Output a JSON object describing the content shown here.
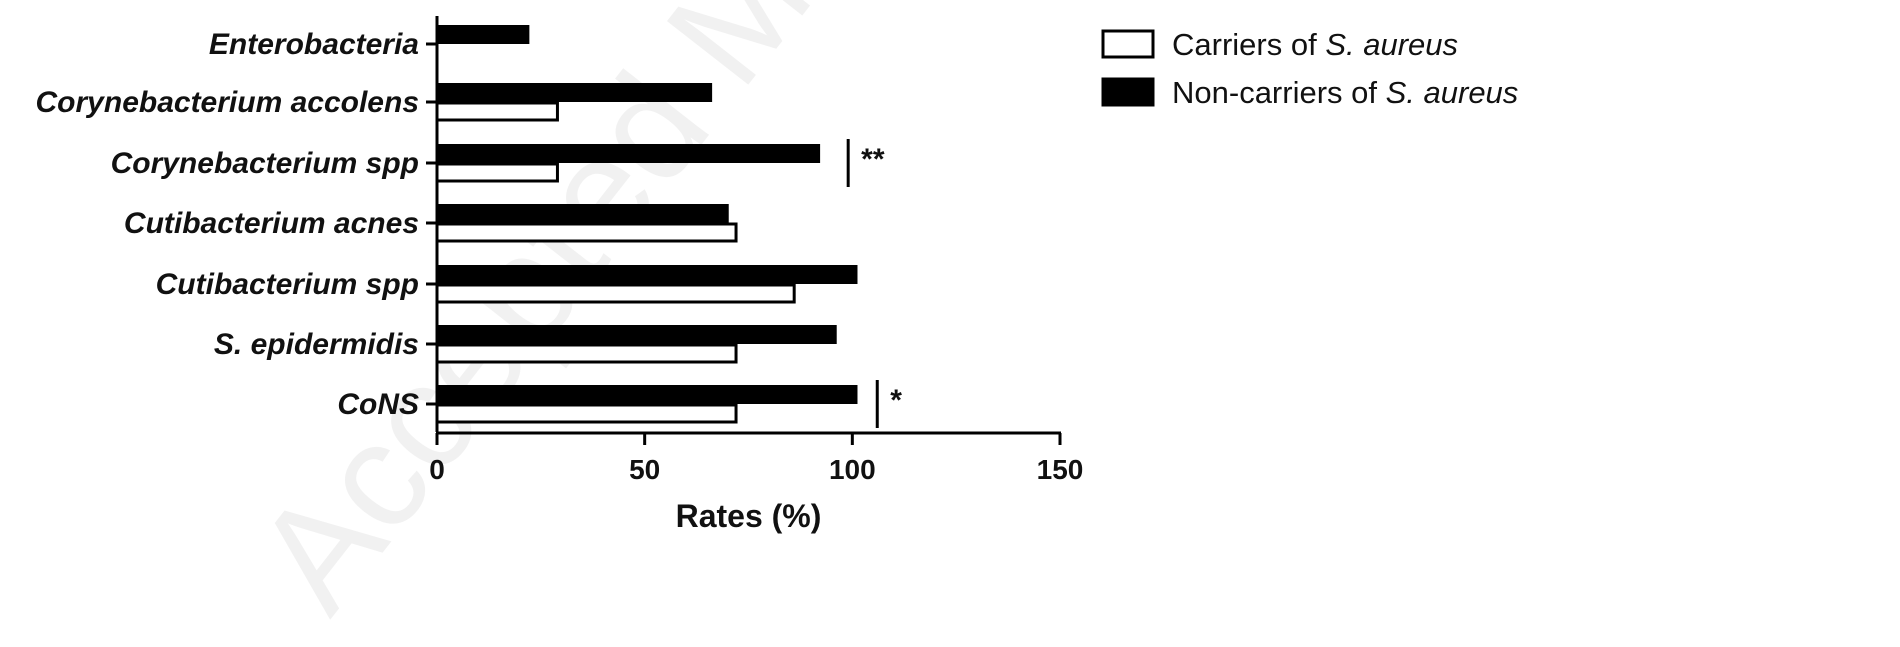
{
  "chart_data": {
    "type": "bar",
    "orientation": "horizontal",
    "categories": [
      "Enterobacteria",
      "Corynebacterium accolens",
      "Corynebacterium spp",
      "Cutibacterium acnes",
      "Cutibacterium spp",
      "S. epidermidis",
      "CoNS"
    ],
    "series": [
      {
        "name_prefix": "Carriers of ",
        "name_italic": "S. aureus",
        "fill": "#ffffff",
        "stroke": "#000000",
        "values": [
          0,
          29,
          29,
          72,
          86,
          72,
          72
        ]
      },
      {
        "name_prefix": "Non-carriers of ",
        "name_italic": "S. aureus",
        "fill": "#000000",
        "stroke": "#000000",
        "values": [
          22,
          66,
          92,
          70,
          101,
          96,
          101
        ]
      }
    ],
    "xlabel": "Rates (%)",
    "ylabel": "",
    "xlim": [
      0,
      150
    ],
    "xticks": [
      "0",
      "50",
      "100",
      "150"
    ],
    "legend_position": "top-right",
    "significance": [
      {
        "category": "Corynebacterium spp",
        "label": "**",
        "at": 99
      },
      {
        "category": "CoNS",
        "label": "*",
        "at": 106
      }
    ]
  },
  "watermark": "Accepted Manuscript"
}
